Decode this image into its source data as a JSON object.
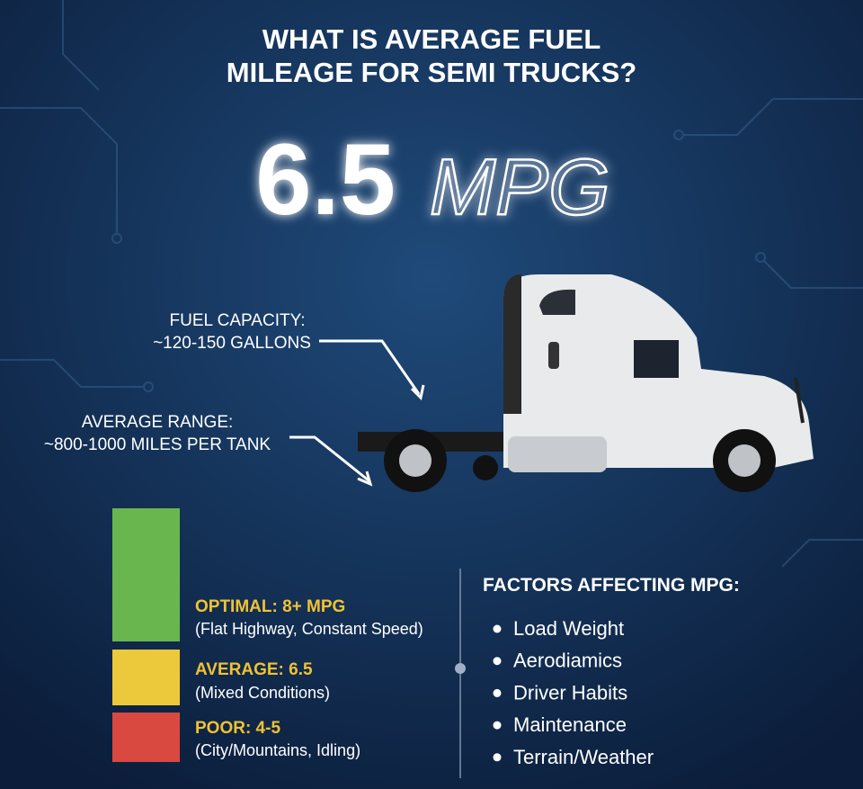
{
  "header": {
    "title_lines": [
      "WHAT IS AVERAGE FUEL",
      "MILEAGE FOR SEMI TRUCKS?"
    ]
  },
  "headline": {
    "value": "6.5",
    "unit": "MPG"
  },
  "callouts": [
    {
      "label": "FUEL CAPACITY:",
      "detail": "~120-150 GALLONS"
    },
    {
      "label": "AVERAGE RANGE:",
      "detail": "~800-1000 MILES PER TANK"
    }
  ],
  "ratings": [
    {
      "label": "OPTIMAL: 8+ MPG",
      "detail": "(Flat Highway, Constant Speed)",
      "color": "#6ab64e"
    },
    {
      "label": "AVERAGE: 6.5",
      "detail": "(Mixed Conditions)",
      "color": "#ecc93a"
    },
    {
      "label": "POOR: 4-5",
      "detail": "(City/Mountains, Idling)",
      "color": "#d9493f"
    }
  ],
  "factors": {
    "title": "FACTORS AFFECTING MPG:",
    "items": [
      "Load Weight",
      "Aerodiamics",
      "Driver Habits",
      "Maintenance",
      "Terrain/Weather"
    ]
  }
}
